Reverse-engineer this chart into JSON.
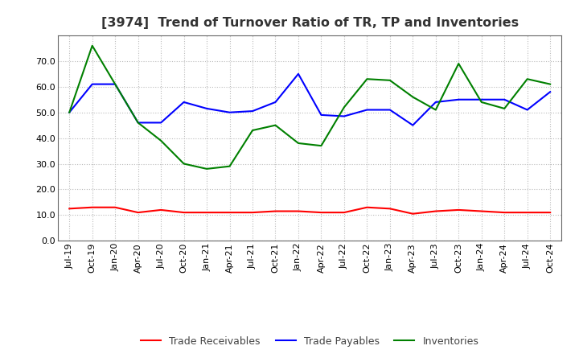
{
  "title": "[3974]  Trend of Turnover Ratio of TR, TP and Inventories",
  "labels": [
    "Jul-19",
    "Oct-19",
    "Jan-20",
    "Apr-20",
    "Jul-20",
    "Oct-20",
    "Jan-21",
    "Apr-21",
    "Jul-21",
    "Oct-21",
    "Jan-22",
    "Apr-22",
    "Jul-22",
    "Oct-22",
    "Jan-23",
    "Apr-23",
    "Jul-23",
    "Oct-23",
    "Jan-24",
    "Apr-24",
    "Jul-24",
    "Oct-24"
  ],
  "trade_receivables": [
    12.5,
    13.0,
    13.0,
    11.0,
    12.0,
    11.0,
    11.0,
    11.0,
    11.0,
    11.5,
    11.5,
    11.0,
    11.0,
    13.0,
    12.5,
    10.5,
    11.5,
    12.0,
    11.5,
    11.0,
    11.0,
    11.0
  ],
  "trade_payables": [
    50.0,
    61.0,
    61.0,
    46.0,
    46.0,
    54.0,
    51.5,
    50.0,
    50.5,
    54.0,
    65.0,
    49.0,
    48.5,
    51.0,
    51.0,
    45.0,
    54.0,
    55.0,
    55.0,
    55.0,
    51.0,
    58.0
  ],
  "inventories": [
    50.0,
    76.0,
    61.0,
    46.0,
    39.0,
    30.0,
    28.0,
    29.0,
    43.0,
    45.0,
    38.0,
    37.0,
    52.0,
    63.0,
    62.5,
    56.0,
    51.0,
    69.0,
    54.0,
    51.5,
    63.0,
    61.0
  ],
  "tr_color": "#ff0000",
  "tp_color": "#0000ff",
  "inv_color": "#008000",
  "ylim": [
    0.0,
    80.0
  ],
  "yticks": [
    0.0,
    10.0,
    20.0,
    30.0,
    40.0,
    50.0,
    60.0,
    70.0
  ],
  "legend_labels": [
    "Trade Receivables",
    "Trade Payables",
    "Inventories"
  ],
  "bg_color": "#ffffff",
  "grid_color": "#aaaaaa",
  "title_fontsize": 11.5,
  "legend_fontsize": 9,
  "tick_fontsize": 8
}
